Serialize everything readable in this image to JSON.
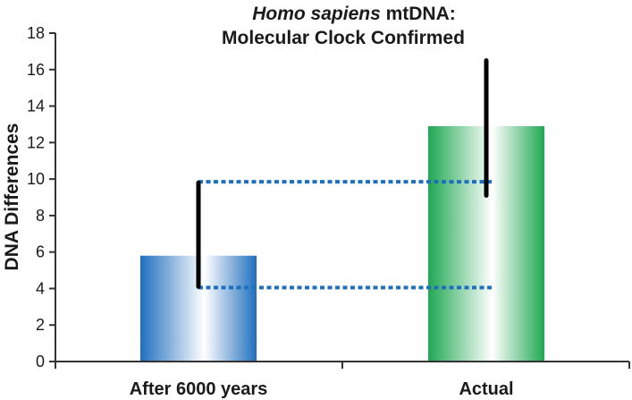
{
  "chart_data": {
    "type": "bar",
    "title_italic": "Homo sapiens",
    "title_rest": " mtDNA:",
    "subtitle": "Molecular Clock Confirmed",
    "ylabel": "DNA Differences",
    "xlabel": "",
    "ylim": [
      0,
      18
    ],
    "yticks": [
      0,
      2,
      4,
      6,
      8,
      10,
      12,
      14,
      16,
      18
    ],
    "ytick_labels": [
      "0",
      "2",
      "4",
      "6",
      "8",
      "10",
      "12",
      "14",
      "16",
      "18"
    ],
    "categories": [
      "After 6000 years",
      "Actual"
    ],
    "values": [
      5.8,
      12.9
    ],
    "error_bars": [
      {
        "low": 4.1,
        "high": 9.8
      },
      {
        "low": 9.1,
        "high": 16.5
      }
    ],
    "reference_lines": [
      4.05,
      9.85
    ],
    "grid": false,
    "legend": "none",
    "colors": {
      "bar1_edge": "#1f6fbf",
      "bar2_edge": "#1fa852",
      "ref_line": "#1f6fbf",
      "error_bar": "#000000",
      "axis": "#333333"
    }
  }
}
